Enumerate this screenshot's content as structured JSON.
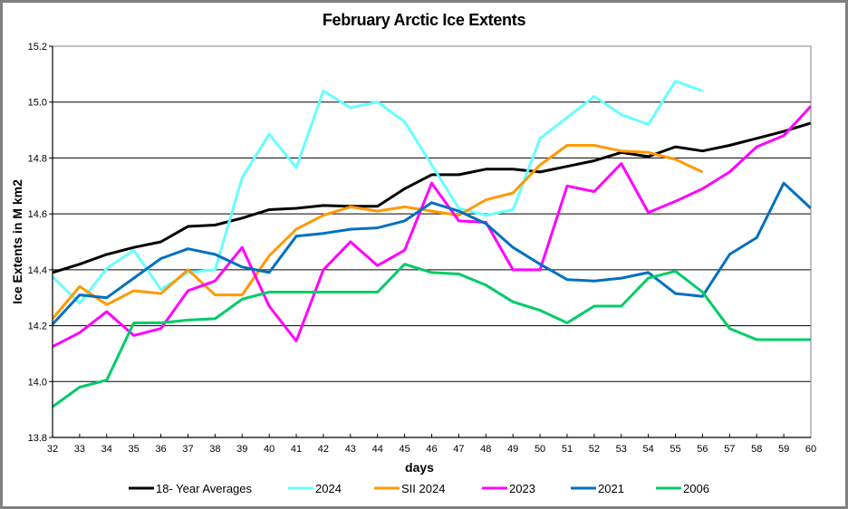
{
  "chart_data": {
    "type": "line",
    "title": "February Arctic Ice Extents",
    "xlabel": "days",
    "ylabel": "Ice Extents in M km2",
    "xlim": [
      32,
      60
    ],
    "ylim": [
      13.8,
      15.2
    ],
    "yticks": [
      "13.8",
      "14.0",
      "14.2",
      "14.4",
      "14.6",
      "14.8",
      "15.0",
      "15.2"
    ],
    "xticks": [
      "32",
      "33",
      "34",
      "35",
      "36",
      "37",
      "38",
      "39",
      "40",
      "41",
      "42",
      "43",
      "44",
      "45",
      "46",
      "47",
      "48",
      "49",
      "50",
      "51",
      "52",
      "53",
      "54",
      "55",
      "56",
      "57",
      "58",
      "59",
      "60"
    ],
    "grid": true,
    "legend_position": "bottom",
    "x": [
      32,
      33,
      34,
      35,
      36,
      37,
      38,
      39,
      40,
      41,
      42,
      43,
      44,
      45,
      46,
      47,
      48,
      49,
      50,
      51,
      52,
      53,
      54,
      55,
      56,
      57,
      58,
      59,
      60
    ],
    "series": [
      {
        "name": "18- Year Averages",
        "color": "#000000",
        "values": [
          14.39,
          14.42,
          14.455,
          14.48,
          14.5,
          14.555,
          14.56,
          14.585,
          14.615,
          14.62,
          14.63,
          14.627,
          14.627,
          14.69,
          14.74,
          14.74,
          14.76,
          14.76,
          14.75,
          14.77,
          14.79,
          14.82,
          14.805,
          14.84,
          14.825,
          14.845,
          14.87,
          14.895,
          14.925
        ]
      },
      {
        "name": "2024",
        "color": "#66ffff",
        "values": [
          14.375,
          14.28,
          14.405,
          14.47,
          14.33,
          14.39,
          14.4,
          14.73,
          14.885,
          14.765,
          15.04,
          14.98,
          15.0,
          14.93,
          14.775,
          14.62,
          14.595,
          14.615,
          14.87,
          14.945,
          15.02,
          14.955,
          14.92,
          15.075,
          15.04,
          null,
          null,
          null,
          null
        ]
      },
      {
        "name": "SII 2024",
        "color": "#ff9900",
        "values": [
          14.225,
          14.34,
          14.275,
          14.325,
          14.315,
          14.4,
          14.31,
          14.31,
          14.45,
          14.545,
          14.595,
          14.625,
          14.61,
          14.625,
          14.61,
          14.595,
          14.65,
          14.675,
          14.775,
          14.845,
          14.845,
          14.825,
          14.82,
          14.795,
          14.75,
          null,
          null,
          null,
          null
        ]
      },
      {
        "name": "2023",
        "color": "#ff00ff",
        "values": [
          14.125,
          14.175,
          14.25,
          14.165,
          14.19,
          14.325,
          14.36,
          14.48,
          14.27,
          14.145,
          14.4,
          14.5,
          14.415,
          14.47,
          14.71,
          14.575,
          14.57,
          14.4,
          14.4,
          14.7,
          14.68,
          14.78,
          14.605,
          14.645,
          14.69,
          14.75,
          14.84,
          14.88,
          14.985
        ]
      },
      {
        "name": "2021",
        "color": "#0070c0",
        "values": [
          14.205,
          14.31,
          14.3,
          14.37,
          14.44,
          14.475,
          14.455,
          14.41,
          14.39,
          14.52,
          14.53,
          14.545,
          14.55,
          14.575,
          14.64,
          14.61,
          14.565,
          14.48,
          14.42,
          14.365,
          14.36,
          14.37,
          14.39,
          14.315,
          14.305,
          14.455,
          14.515,
          14.71,
          14.62
        ]
      },
      {
        "name": "2006",
        "color": "#00cc66",
        "values": [
          13.91,
          13.98,
          14.005,
          14.21,
          14.21,
          14.22,
          14.225,
          14.295,
          14.32,
          14.32,
          14.32,
          14.32,
          14.32,
          14.42,
          14.39,
          14.385,
          14.345,
          14.285,
          14.255,
          14.21,
          14.27,
          14.27,
          14.37,
          14.395,
          14.32,
          14.19,
          14.15,
          14.15,
          14.15
        ]
      }
    ]
  }
}
